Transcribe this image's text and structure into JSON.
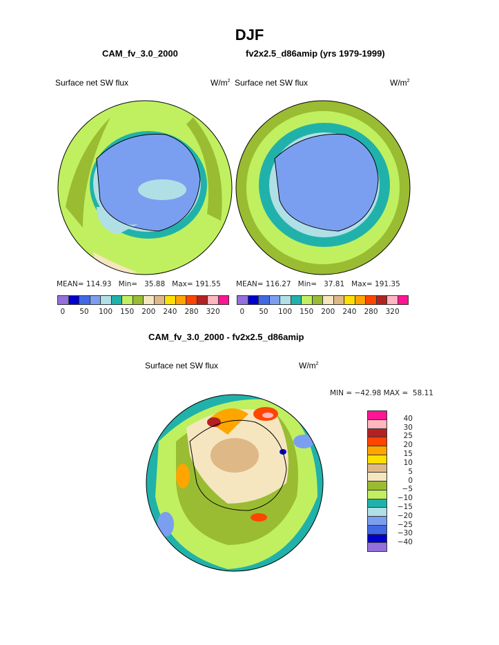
{
  "title": "DJF",
  "panels": [
    {
      "name": "CAM_fv_3.0_2000",
      "field": "Surface net SW flux",
      "units_base": "W/m",
      "units_exp": "2",
      "mean_label": "MEAN=",
      "mean": "114.93",
      "min_label": "Min=",
      "min": "35.88",
      "max_label": "Max=",
      "max": "191.55"
    },
    {
      "name": "fv2x2.5_d86amip (yrs 1979-1999)",
      "field": "Surface net SW flux",
      "units_base": "W/m",
      "units_exp": "2",
      "mean_label": "MEAN=",
      "mean": "116.27",
      "min_label": "Min=",
      "min": "37.81",
      "max_label": "Max=",
      "max": "191.35"
    }
  ],
  "abs_colorbar": {
    "colors": [
      "#9370db",
      "#0000cd",
      "#4169e1",
      "#7b9ff0",
      "#b0e0e6",
      "#20b2aa",
      "#c0f060",
      "#9abc32",
      "#f5e6c0",
      "#deb887",
      "#ffdf00",
      "#ffa500",
      "#ff4500",
      "#b22222",
      "#ffb6c1",
      "#ff1493"
    ],
    "labels": [
      "0",
      "50",
      "100",
      "150",
      "200",
      "240",
      "280",
      "320"
    ]
  },
  "diff": {
    "title": "CAM_fv_3.0_2000 - fv2x2.5_d86amip",
    "field": "Surface net SW flux",
    "units_base": "W/m",
    "units_exp": "2",
    "minmax": "MIN = −42.98 MAX =  58.11",
    "colors_top_to_bottom": [
      "#ff1493",
      "#ffb6c1",
      "#b22222",
      "#ff4500",
      "#ffa500",
      "#ffdf00",
      "#deb887",
      "#f5e6c0",
      "#9abc32",
      "#c0f060",
      "#20b2aa",
      "#b0e0e6",
      "#7b9ff0",
      "#4169e1",
      "#0000cd",
      "#9370db"
    ],
    "labels": [
      "40",
      "30",
      "25",
      "20",
      "15",
      "10",
      "5",
      "0",
      "−5",
      "−10",
      "−15",
      "−20",
      "−25",
      "−30",
      "−40"
    ]
  }
}
